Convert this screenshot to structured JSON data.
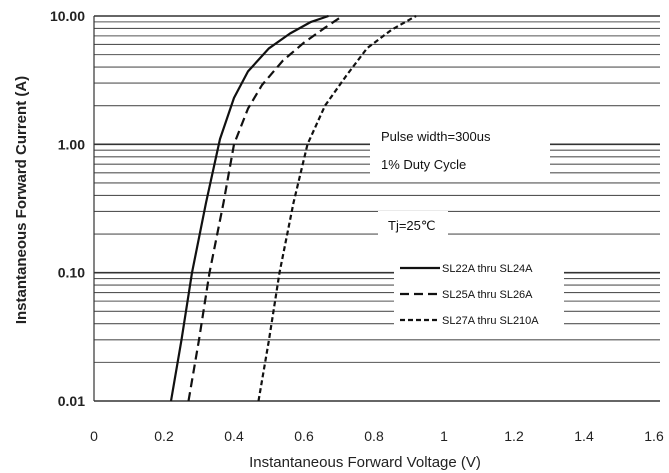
{
  "chart_data": {
    "type": "line",
    "xlabel": "Instantaneous Forward Voltage (V)",
    "ylabel": "Instantaneous Forward Current (A)",
    "xlim": [
      0,
      1.6
    ],
    "ylim": [
      0.01,
      10
    ],
    "y_scale": "log",
    "x_ticks": [
      "0",
      "0.2",
      "0.4",
      "0.6",
      "0.8",
      "1",
      "1.2",
      "1.4",
      "1.6"
    ],
    "y_ticks": [
      "0.01",
      "0.10",
      "1.00",
      "10.00"
    ],
    "grid": true,
    "annotations": [
      "Pulse width=300us",
      "1% Duty Cycle",
      "Tj=25℃"
    ],
    "series": [
      {
        "name": "SL22A thru SL24A",
        "dash": "solid",
        "x": [
          0.22,
          0.25,
          0.28,
          0.32,
          0.36,
          0.4,
          0.44,
          0.5,
          0.56,
          0.62,
          0.67
        ],
        "y": [
          0.01,
          0.03,
          0.1,
          0.35,
          1.1,
          2.3,
          3.7,
          5.6,
          7.3,
          9.0,
          10.0
        ]
      },
      {
        "name": "SL25A thru SL26A",
        "dash": "long-dash",
        "x": [
          0.27,
          0.3,
          0.33,
          0.37,
          0.4,
          0.44,
          0.48,
          0.54,
          0.6,
          0.66,
          0.71
        ],
        "y": [
          0.01,
          0.03,
          0.1,
          0.35,
          1.0,
          1.9,
          2.9,
          4.5,
          6.2,
          8.1,
          10.0
        ]
      },
      {
        "name": "SL27A thru SL210A",
        "dash": "short-dash",
        "x": [
          0.47,
          0.5,
          0.53,
          0.57,
          0.61,
          0.66,
          0.72,
          0.78,
          0.85,
          0.92
        ],
        "y": [
          0.01,
          0.03,
          0.1,
          0.35,
          1.0,
          2.0,
          3.4,
          5.6,
          7.8,
          10.0
        ]
      }
    ],
    "legend": {
      "items": [
        "SL22A thru SL24A",
        "SL25A thru SL26A",
        "SL27A thru SL210A"
      ],
      "placement": "right-middle"
    }
  }
}
